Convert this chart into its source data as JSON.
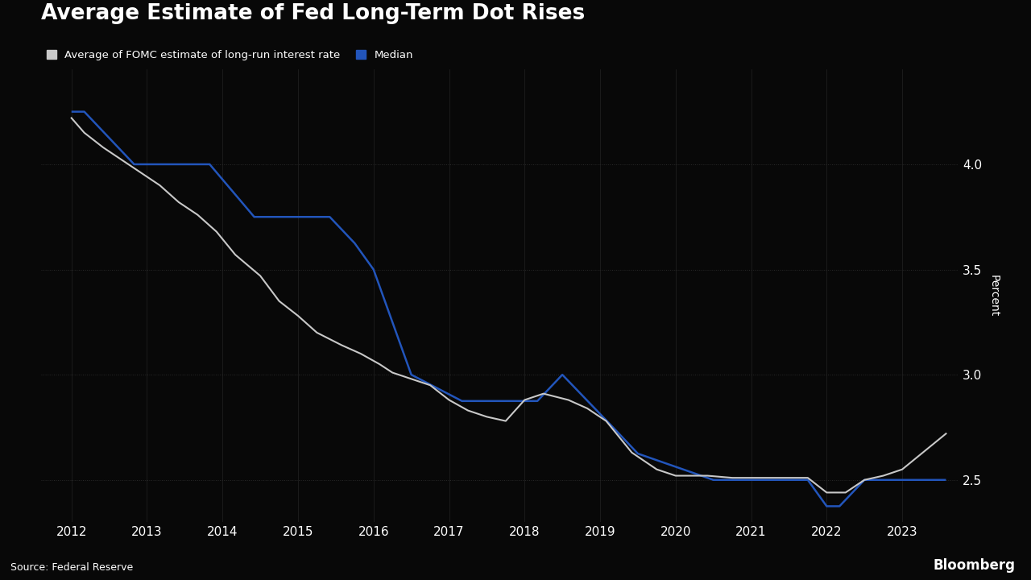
{
  "title": "Average Estimate of Fed Long-Term Dot Rises",
  "source": "Source: Federal Reserve",
  "bloomberg_label": "Bloomberg",
  "ylabel": "Percent",
  "background_color": "#080808",
  "text_color": "#ffffff",
  "avg_color": "#c8c8c8",
  "median_color": "#2255bb",
  "legend_avg": "Average of FOMC estimate of long-run interest rate",
  "legend_median": "Median",
  "ylim": [
    2.3,
    4.45
  ],
  "yticks": [
    2.5,
    3.0,
    3.5,
    4.0
  ],
  "xlim_left": 2011.6,
  "xlim_right": 2023.75,
  "avg_x": [
    2012.0,
    2012.17,
    2012.42,
    2012.67,
    2012.92,
    2013.17,
    2013.42,
    2013.67,
    2013.92,
    2014.17,
    2014.5,
    2014.75,
    2015.0,
    2015.25,
    2015.58,
    2015.83,
    2016.08,
    2016.25,
    2016.5,
    2016.75,
    2017.0,
    2017.25,
    2017.5,
    2017.75,
    2018.0,
    2018.25,
    2018.58,
    2018.83,
    2019.08,
    2019.42,
    2019.75,
    2020.0,
    2020.42,
    2020.75,
    2021.0,
    2021.25,
    2021.5,
    2021.75,
    2022.0,
    2022.25,
    2022.5,
    2022.75,
    2023.0,
    2023.58
  ],
  "avg_y": [
    4.22,
    4.15,
    4.08,
    4.02,
    3.96,
    3.9,
    3.82,
    3.76,
    3.68,
    3.57,
    3.47,
    3.35,
    3.28,
    3.2,
    3.14,
    3.1,
    3.05,
    3.01,
    2.98,
    2.95,
    2.88,
    2.83,
    2.8,
    2.78,
    2.88,
    2.91,
    2.88,
    2.84,
    2.78,
    2.63,
    2.55,
    2.52,
    2.52,
    2.51,
    2.51,
    2.51,
    2.51,
    2.51,
    2.44,
    2.44,
    2.5,
    2.52,
    2.55,
    2.72
  ],
  "median_x": [
    2012.0,
    2012.17,
    2012.17,
    2012.83,
    2012.83,
    2013.83,
    2013.83,
    2014.42,
    2014.42,
    2015.42,
    2015.42,
    2015.75,
    2015.75,
    2016.0,
    2016.0,
    2016.5,
    2016.5,
    2017.17,
    2017.17,
    2017.75,
    2017.75,
    2018.17,
    2018.17,
    2018.5,
    2018.5,
    2019.17,
    2019.17,
    2019.5,
    2019.5,
    2020.5,
    2020.5,
    2021.75,
    2021.75,
    2022.0,
    2022.0,
    2022.17,
    2022.17,
    2022.5,
    2022.5,
    2023.58
  ],
  "median_y": [
    4.25,
    4.25,
    4.25,
    4.0,
    4.0,
    4.0,
    4.0,
    3.75,
    3.75,
    3.75,
    3.75,
    3.625,
    3.625,
    3.5,
    3.5,
    3.0,
    3.0,
    2.875,
    2.875,
    2.875,
    2.875,
    2.875,
    2.875,
    3.0,
    3.0,
    2.75,
    2.75,
    2.625,
    2.625,
    2.5,
    2.5,
    2.5,
    2.5,
    2.375,
    2.375,
    2.375,
    2.375,
    2.5,
    2.5,
    2.5
  ]
}
